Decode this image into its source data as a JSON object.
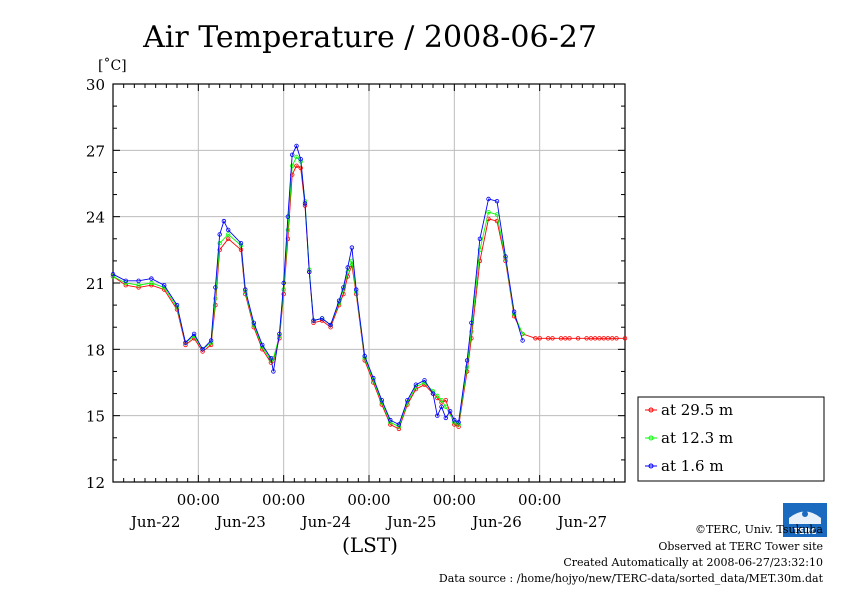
{
  "chart_data": {
    "type": "line",
    "title": "Air Temperature / 2008-06-27",
    "ylabel": "[˚C]",
    "xlabel": "(LST)",
    "ylim": [
      12,
      30
    ],
    "xlim": [
      -2.0,
      4.0
    ],
    "y_ticks": [
      "12",
      "15",
      "18",
      "21",
      "24",
      "27",
      "30"
    ],
    "x_time_ticks": [
      "00:00",
      "00:00",
      "00:00",
      "00:00",
      "00:00"
    ],
    "x_day_labels": [
      "Jun-22",
      "Jun-23",
      "Jun-24",
      "Jun-25",
      "Jun-26",
      "Jun-27"
    ],
    "grid": true,
    "legend_position": "bottom-right outside",
    "series": [
      {
        "name": "at 29.5 m",
        "color": "#ff0000",
        "x": [
          -2.0,
          -1.85,
          -1.7,
          -1.55,
          -1.4,
          -1.25,
          -1.15,
          -1.05,
          -0.95,
          -0.85,
          -0.8,
          -0.75,
          -0.65,
          -0.5,
          -0.45,
          -0.35,
          -0.25,
          -0.15,
          -0.12,
          -0.05,
          0.0,
          0.05,
          0.1,
          0.15,
          0.2,
          0.25,
          0.3,
          0.35,
          0.45,
          0.55,
          0.65,
          0.7,
          0.75,
          0.8,
          0.85,
          0.95,
          1.05,
          1.15,
          1.25,
          1.35,
          1.45,
          1.55,
          1.65,
          1.75,
          1.8,
          1.85,
          1.9,
          2.0,
          2.05,
          2.15,
          2.2,
          2.3,
          2.4,
          2.5,
          2.6,
          2.7,
          2.8,
          2.95,
          3.0,
          3.1,
          3.15,
          3.25,
          3.3,
          3.35,
          3.45,
          3.55,
          3.6,
          3.65,
          3.7,
          3.75,
          3.8,
          3.85,
          3.9,
          4.0
        ],
        "values": [
          21.3,
          20.9,
          20.8,
          20.9,
          20.7,
          19.8,
          18.2,
          18.5,
          17.9,
          18.2,
          20.0,
          22.5,
          23.0,
          22.5,
          20.5,
          19.0,
          18.0,
          17.4,
          17.5,
          18.5,
          20.5,
          23.0,
          25.9,
          26.3,
          26.2,
          24.5,
          21.5,
          19.2,
          19.3,
          19.0,
          20.0,
          20.5,
          21.3,
          21.8,
          20.5,
          17.5,
          16.5,
          15.5,
          14.6,
          14.4,
          15.5,
          16.2,
          16.4,
          16.0,
          15.8,
          15.6,
          15.7,
          14.6,
          14.5,
          17.0,
          18.5,
          22.0,
          23.9,
          23.8,
          22.0,
          19.5,
          18.7,
          18.5,
          18.5,
          18.5,
          18.5,
          18.5,
          18.5,
          18.5,
          18.5,
          18.5,
          18.5,
          18.5,
          18.5,
          18.5,
          18.5,
          18.5,
          18.5,
          18.5
        ]
      },
      {
        "name": "at 12.3 m",
        "color": "#00ff00",
        "x": [
          -2.0,
          -1.85,
          -1.7,
          -1.55,
          -1.4,
          -1.25,
          -1.15,
          -1.05,
          -0.95,
          -0.85,
          -0.8,
          -0.75,
          -0.65,
          -0.5,
          -0.45,
          -0.35,
          -0.25,
          -0.15,
          -0.12,
          -0.05,
          0.0,
          0.05,
          0.1,
          0.15,
          0.2,
          0.25,
          0.3,
          0.35,
          0.45,
          0.55,
          0.65,
          0.7,
          0.75,
          0.8,
          0.85,
          0.95,
          1.05,
          1.15,
          1.25,
          1.35,
          1.45,
          1.55,
          1.65,
          1.75,
          1.8,
          1.85,
          1.9,
          2.0,
          2.05,
          2.15,
          2.2,
          2.3,
          2.4,
          2.5,
          2.6,
          2.7,
          2.8
        ],
        "values": [
          21.3,
          21.0,
          20.9,
          21.0,
          20.8,
          19.9,
          18.3,
          18.6,
          18.0,
          18.3,
          20.3,
          22.8,
          23.2,
          22.7,
          20.6,
          19.1,
          18.1,
          17.5,
          17.6,
          18.6,
          20.7,
          23.4,
          26.3,
          26.7,
          26.5,
          24.7,
          21.6,
          19.3,
          19.4,
          19.1,
          20.1,
          20.7,
          21.5,
          22.0,
          20.6,
          17.6,
          16.6,
          15.6,
          14.7,
          14.5,
          15.6,
          16.3,
          16.5,
          16.1,
          15.9,
          15.7,
          15.4,
          14.7,
          14.6,
          17.2,
          18.8,
          22.5,
          24.2,
          24.1,
          22.1,
          19.6,
          18.7
        ]
      },
      {
        "name": "at 1.6 m",
        "color": "#0000ff",
        "x": [
          -2.0,
          -1.85,
          -1.7,
          -1.55,
          -1.4,
          -1.25,
          -1.15,
          -1.05,
          -0.95,
          -0.85,
          -0.8,
          -0.75,
          -0.7,
          -0.65,
          -0.5,
          -0.45,
          -0.35,
          -0.25,
          -0.15,
          -0.12,
          -0.05,
          0.0,
          0.05,
          0.1,
          0.15,
          0.2,
          0.25,
          0.3,
          0.35,
          0.45,
          0.55,
          0.65,
          0.7,
          0.75,
          0.8,
          0.85,
          0.95,
          1.05,
          1.15,
          1.25,
          1.35,
          1.45,
          1.55,
          1.65,
          1.75,
          1.8,
          1.85,
          1.9,
          1.95,
          2.0,
          2.05,
          2.15,
          2.2,
          2.3,
          2.4,
          2.5,
          2.6,
          2.7,
          2.8
        ],
        "values": [
          21.4,
          21.1,
          21.1,
          21.2,
          20.9,
          20.0,
          18.3,
          18.7,
          18.0,
          18.4,
          20.8,
          23.2,
          23.8,
          23.4,
          22.8,
          20.7,
          19.2,
          18.2,
          17.6,
          17.0,
          18.7,
          21.0,
          24.0,
          26.8,
          27.2,
          26.6,
          24.6,
          21.5,
          19.3,
          19.4,
          19.1,
          20.2,
          20.8,
          21.7,
          22.6,
          20.7,
          17.7,
          16.7,
          15.7,
          14.8,
          14.6,
          15.7,
          16.4,
          16.6,
          16.0,
          15.0,
          15.4,
          14.9,
          15.2,
          14.8,
          14.7,
          17.5,
          19.2,
          23.0,
          24.8,
          24.7,
          22.2,
          19.7,
          18.4
        ]
      }
    ]
  },
  "credits": {
    "copyright": "©TERC, Univ. Tsukuba",
    "observed": "Observed at TERC Tower site",
    "created": "Created Automatically at 2008-06-27/23:32:10",
    "source": "Data source : /home/hojyo/new/TERC-data/sorted_data/MET.30m.dat",
    "logo_text": "TERC"
  }
}
